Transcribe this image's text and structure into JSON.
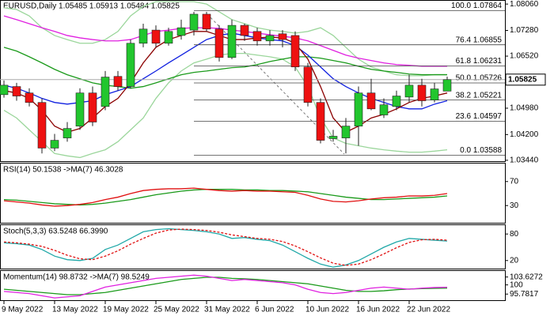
{
  "chart_data": {
    "type": "candlestick",
    "title": "EURUSD,Daily  1.05485 1.05913 1.05484 1.05825",
    "categories": [
      "9 May 2022",
      null,
      null,
      null,
      "13 May 2022",
      null,
      null,
      null,
      "19 May 2022",
      null,
      null,
      null,
      "25 May 2022",
      null,
      null,
      null,
      "31 May 2022",
      null,
      null,
      null,
      "6 Jun 2022",
      null,
      null,
      null,
      "10 Jun 2022",
      null,
      null,
      null,
      "16 Jun 2022",
      null,
      null,
      null,
      "22 Jun 2022",
      null,
      null,
      null
    ],
    "open": [
      1.0538,
      1.0562,
      1.0543,
      1.0515,
      1.038,
      1.041,
      1.0445,
      1.0543,
      1.0503,
      1.0592,
      1.0562,
      1.069,
      1.0729,
      1.069,
      1.0713,
      1.0729,
      1.0776,
      1.0732,
      1.0648,
      1.0743,
      1.0725,
      1.0697,
      1.0718,
      1.0713,
      1.062,
      1.0515,
      1.0408,
      1.041,
      1.0445,
      1.0543,
      1.0478,
      1.0503,
      1.0531,
      1.0566,
      1.0522,
      1.05485
    ],
    "high": [
      1.058,
      1.0573,
      1.0557,
      1.0527,
      1.0422,
      1.0457,
      1.0557,
      1.0562,
      1.0608,
      1.0608,
      1.0701,
      1.0748,
      1.0743,
      1.0736,
      1.076,
      1.0783,
      1.0783,
      1.0743,
      1.076,
      1.0748,
      1.0736,
      1.0729,
      1.0729,
      1.0725,
      1.0632,
      1.0527,
      1.0434,
      1.0469,
      1.0562,
      1.0585,
      1.0527,
      1.055,
      1.0597,
      1.0585,
      1.0573,
      1.05913
    ],
    "low": [
      1.0529,
      1.052,
      1.0503,
      1.0364,
      1.0371,
      1.0399,
      1.0434,
      1.0445,
      1.0492,
      1.055,
      1.0557,
      1.0678,
      1.0678,
      1.0683,
      1.0701,
      1.0713,
      1.0725,
      1.0636,
      1.0643,
      1.0697,
      1.0683,
      1.0683,
      1.0678,
      1.0608,
      1.0503,
      1.0394,
      1.0399,
      1.0364,
      1.0387,
      1.0492,
      1.0469,
      1.0492,
      1.0515,
      1.0503,
      1.0515,
      1.05484
    ],
    "close": [
      1.0566,
      1.0534,
      1.0515,
      1.038,
      1.0403,
      1.0438,
      1.0543,
      1.0457,
      1.059,
      1.0562,
      1.069,
      1.0732,
      1.069,
      1.0725,
      1.0736,
      1.0776,
      1.0732,
      1.0648,
      1.0743,
      1.0713,
      1.0697,
      1.0713,
      1.0701,
      1.062,
      1.0515,
      1.0403,
      1.0415,
      1.0445,
      1.0543,
      1.0496,
      1.0508,
      1.0534,
      1.0566,
      1.052,
      1.0555,
      1.05825
    ],
    "up_color": "#22c62e",
    "down_color": "#ee1111",
    "ylim": [
      1.0339,
      1.0818
    ],
    "yticks": [
      {
        "value": 1.0806,
        "label": "1.08060"
      },
      {
        "value": 1.0728,
        "label": "1.07280"
      },
      {
        "value": 1.0652,
        "label": "1.06520"
      },
      {
        "value": 1.0498,
        "label": "1.04980"
      },
      {
        "value": 1.042,
        "label": "1.04200"
      },
      {
        "value": 1.0344,
        "label": "1.03440"
      }
    ],
    "last_price": {
      "value": 1.05825,
      "label": "1.05825"
    },
    "overlays": [
      {
        "color": "#9bd69b",
        "values": [
          1.0795,
          1.079,
          1.0771,
          1.0736,
          1.0713,
          1.0701,
          1.069,
          1.069,
          1.0701,
          1.0725,
          1.0771,
          1.0799,
          1.0813,
          1.0813,
          1.0813,
          1.0813,
          1.0806,
          1.0783,
          1.076,
          1.0748,
          1.0736,
          1.0729,
          1.0725,
          1.072,
          1.0725,
          1.0736,
          1.0713,
          1.0678,
          1.0643,
          1.062,
          1.0608,
          1.0597,
          1.0594,
          1.0594,
          1.0597,
          1.0597
        ]
      },
      {
        "color": "#9bd69b",
        "values": [
          1.0492,
          1.0469,
          1.0434,
          1.0399,
          1.0364,
          1.0357,
          1.0352,
          1.0364,
          1.0375,
          1.0399,
          1.0434,
          1.0469,
          1.0527,
          1.0573,
          1.0608,
          1.0632,
          1.0643,
          1.0655,
          1.066,
          1.066,
          1.0655,
          1.065,
          1.0643,
          1.062,
          1.0562,
          1.0469,
          1.041,
          1.0394,
          1.0387,
          1.038,
          1.0375,
          1.0371,
          1.0368,
          1.0368,
          1.0371,
          1.0375
        ]
      },
      {
        "color": "#e020e0",
        "values": [
          1.0771,
          1.076,
          1.0748,
          1.0736,
          1.0725,
          1.0713,
          1.0706,
          1.0701,
          1.0697,
          1.0697,
          1.0701,
          1.0713,
          1.0725,
          1.0729,
          1.0734,
          1.0736,
          1.0736,
          1.0734,
          1.0729,
          1.0725,
          1.072,
          1.0715,
          1.0711,
          1.0706,
          1.0697,
          1.0683,
          1.0669,
          1.0655,
          1.0646,
          1.0639,
          1.0632,
          1.0627,
          1.0625,
          1.0622,
          1.0622,
          1.0622
        ]
      },
      {
        "color": "#1a9a1a",
        "values": [
          1.0678,
          1.0667,
          1.065,
          1.0632,
          1.0613,
          1.0597,
          1.0585,
          1.0573,
          1.0566,
          1.0562,
          1.0557,
          1.0562,
          1.0573,
          1.0585,
          1.0597,
          1.0604,
          1.0608,
          1.0613,
          1.0618,
          1.062,
          1.0627,
          1.0636,
          1.0643,
          1.065,
          1.065,
          1.0646,
          1.0639,
          1.0632,
          1.0622,
          1.0613,
          1.0608,
          1.0604,
          1.0599,
          1.0597,
          1.0597,
          1.0597
        ]
      },
      {
        "color": "#1020e0",
        "values": [
          1.0566,
          1.0557,
          1.0543,
          1.0527,
          1.0515,
          1.051,
          1.0515,
          1.052,
          1.0538,
          1.055,
          1.0562,
          1.0585,
          1.0608,
          1.0632,
          1.0655,
          1.0678,
          1.0701,
          1.0713,
          1.072,
          1.0713,
          1.0706,
          1.0701,
          1.0697,
          1.0683,
          1.0655,
          1.062,
          1.0585,
          1.0562,
          1.0543,
          1.0527,
          1.0515,
          1.0503,
          1.0496,
          1.0496,
          1.051,
          1.052
        ]
      },
      {
        "color": "#8b0000",
        "values": [
          1.055,
          1.0543,
          1.0527,
          1.0492,
          1.0445,
          1.0427,
          1.0438,
          1.0469,
          1.0503,
          1.0527,
          1.0573,
          1.0632,
          1.0678,
          1.0701,
          1.0713,
          1.0725,
          1.0725,
          1.0713,
          1.0701,
          1.0701,
          1.0706,
          1.0708,
          1.0706,
          1.069,
          1.0643,
          1.0562,
          1.0469,
          1.0427,
          1.0445,
          1.0469,
          1.048,
          1.0496,
          1.0515,
          1.0527,
          1.0534,
          1.0543
        ]
      }
    ],
    "fib_levels": [
      {
        "value": 1.07864,
        "label": "100.0 1.07864"
      },
      {
        "value": 1.06855,
        "label": "76.4 1.06855"
      },
      {
        "value": 1.06231,
        "label": "61.8 1.06231"
      },
      {
        "value": 1.05726,
        "label": "50.0 1.05726"
      },
      {
        "value": 1.05221,
        "label": "38.2 1.05221"
      },
      {
        "value": 1.04597,
        "label": "23.6 1.04597"
      },
      {
        "value": 1.03588,
        "label": "0.0 1.03588"
      }
    ],
    "indicators": [
      {
        "title": "RSI(14) 50.1538  ->MA(7) 46.3028",
        "ylim": [
          0,
          100
        ],
        "yticks": [
          70,
          30
        ],
        "series": [
          {
            "color": "#1a9a1a",
            "values": [
              40,
              39,
              37,
              35,
              33,
              32,
              31,
              32,
              34,
              37,
              40,
              44,
              48,
              51,
              54,
              56,
              57,
              57,
              57,
              56,
              56,
              55,
              55,
              54,
              53,
              50,
              47,
              44,
              42,
              40,
              40,
              41,
              42,
              43,
              44,
              46
            ]
          },
          {
            "color": "#e01010",
            "values": [
              38,
              36,
              34,
              31,
              29,
              30,
              32,
              35,
              40,
              44,
              50,
              55,
              57,
              58,
              58,
              59,
              57,
              55,
              54,
              55,
              54,
              54,
              53,
              52,
              47,
              41,
              37,
              36,
              38,
              41,
              43,
              44,
              46,
              46,
              47,
              50
            ]
          }
        ]
      },
      {
        "title": "Stoch(5,3,3) 63.5248 66.3990",
        "ylim": [
          0,
          100
        ],
        "yticks": [
          80,
          20
        ],
        "series": [
          {
            "color": "#20a8a8",
            "values": [
              60,
              58,
              55,
              45,
              30,
              22,
              20,
              25,
              45,
              55,
              70,
              85,
              90,
              92,
              90,
              88,
              85,
              80,
              70,
              72,
              68,
              65,
              55,
              40,
              25,
              12,
              5,
              10,
              20,
              35,
              50,
              62,
              70,
              68,
              66,
              64
            ]
          },
          {
            "color": "#e01010",
            "dash": true,
            "values": [
              62,
              60,
              57,
              52,
              43,
              32,
              24,
              22,
              30,
              42,
              57,
              70,
              82,
              89,
              91,
              90,
              88,
              84,
              78,
              74,
              70,
              68,
              63,
              53,
              40,
              26,
              14,
              9,
              12,
              22,
              35,
              49,
              61,
              67,
              68,
              66
            ]
          }
        ]
      },
      {
        "title": "Momentum(14) 98.8732  ->MA(7) 98.5249",
        "ylim": [
          92.6,
          106.4
        ],
        "yticks": [
          103.6272,
          100,
          95.7817
        ],
        "series": [
          {
            "color": "#1a9a1a",
            "values": [
              98,
              97.5,
              97,
              96.5,
              96,
              95.5,
              95.5,
              96,
              96.5,
              97.5,
              98.5,
              99.5,
              100.5,
              101.5,
              102.5,
              103,
              103.5,
              103.5,
              103,
              102.8,
              102.5,
              102,
              101.5,
              101,
              100.5,
              99.5,
              98.5,
              97.5,
              97,
              97,
              97.3,
              97.8,
              98.1,
              98.3,
              98.4,
              98.5
            ]
          },
          {
            "color": "#e020e0",
            "values": [
              97,
              96.5,
              96,
              95,
              94,
              94.5,
              95,
              97,
              99,
              100,
              101,
              102,
              103,
              103.5,
              104,
              104.5,
              104,
              103,
              102,
              102.5,
              102,
              101.5,
              101,
              100,
              98,
              96.5,
              96,
              96.5,
              97.5,
              98.5,
              99,
              98.5,
              98,
              98.5,
              98.8,
              98.9
            ]
          }
        ]
      }
    ]
  }
}
